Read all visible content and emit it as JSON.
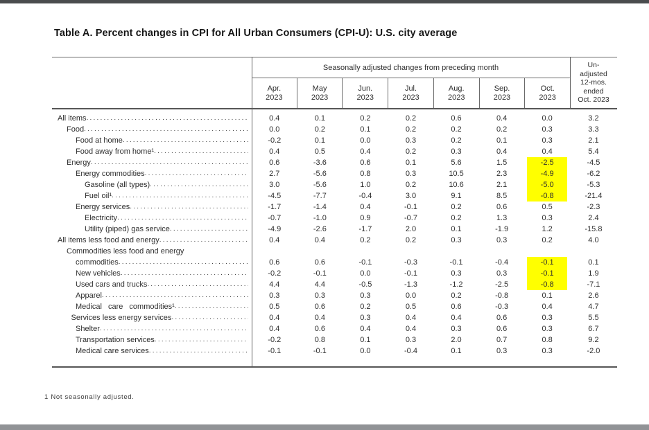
{
  "page": {
    "title": "Table A. Percent changes in CPI for All Urban Consumers (CPI-U): U.S. city average",
    "footnote": "1 Not seasonally adjusted."
  },
  "table": {
    "group_header": "Seasonally adjusted changes from preceding month",
    "month_headers": [
      "Apr.\n2023",
      "May\n2023",
      "Jun.\n2023",
      "Jul.\n2023",
      "Aug.\n2023",
      "Sep.\n2023",
      "Oct.\n2023"
    ],
    "unadjusted_header": "Un-\nadjusted\n12-mos.\nended\nOct. 2023",
    "highlight_color": "#FFFF00",
    "rows": [
      {
        "label": "All items",
        "indent": 0,
        "values": [
          "0.4",
          "0.1",
          "0.2",
          "0.2",
          "0.6",
          "0.4",
          "0.0"
        ],
        "unadjusted": "3.2",
        "highlight_oct": false
      },
      {
        "label": "Food",
        "indent": 1,
        "values": [
          "0.0",
          "0.2",
          "0.1",
          "0.2",
          "0.2",
          "0.2",
          "0.3"
        ],
        "unadjusted": "3.3",
        "highlight_oct": false
      },
      {
        "label": "Food at home",
        "indent": 2,
        "values": [
          "-0.2",
          "0.1",
          "0.0",
          "0.3",
          "0.2",
          "0.1",
          "0.3"
        ],
        "unadjusted": "2.1",
        "highlight_oct": false
      },
      {
        "label": "Food away from home¹",
        "indent": 2,
        "values": [
          "0.4",
          "0.5",
          "0.4",
          "0.2",
          "0.3",
          "0.4",
          "0.4"
        ],
        "unadjusted": "5.4",
        "highlight_oct": false
      },
      {
        "label": "Energy",
        "indent": 1,
        "values": [
          "0.6",
          "-3.6",
          "0.6",
          "0.1",
          "5.6",
          "1.5",
          "-2.5"
        ],
        "unadjusted": "-4.5",
        "highlight_oct": true
      },
      {
        "label": "Energy commodities",
        "indent": 2,
        "values": [
          "2.7",
          "-5.6",
          "0.8",
          "0.3",
          "10.5",
          "2.3",
          "-4.9"
        ],
        "unadjusted": "-6.2",
        "highlight_oct": true
      },
      {
        "label": "Gasoline (all types)",
        "indent": 3,
        "values": [
          "3.0",
          "-5.6",
          "1.0",
          "0.2",
          "10.6",
          "2.1",
          "-5.0"
        ],
        "unadjusted": "-5.3",
        "highlight_oct": true
      },
      {
        "label": "Fuel oil¹",
        "indent": 3,
        "values": [
          "-4.5",
          "-7.7",
          "-0.4",
          "3.0",
          "9.1",
          "8.5",
          "-0.8"
        ],
        "unadjusted": "-21.4",
        "highlight_oct": true
      },
      {
        "label": "Energy services",
        "indent": 2,
        "values": [
          "-1.7",
          "-1.4",
          "0.4",
          "-0.1",
          "0.2",
          "0.6",
          "0.5"
        ],
        "unadjusted": "-2.3",
        "highlight_oct": false
      },
      {
        "label": "Electricity",
        "indent": 3,
        "values": [
          "-0.7",
          "-1.0",
          "0.9",
          "-0.7",
          "0.2",
          "1.3",
          "0.3"
        ],
        "unadjusted": "2.4",
        "highlight_oct": false
      },
      {
        "label": "Utility (piped) gas service",
        "indent": 3,
        "values": [
          "-4.9",
          "-2.6",
          "-1.7",
          "2.0",
          "0.1",
          "-1.9",
          "1.2"
        ],
        "unadjusted": "-15.8",
        "highlight_oct": false
      },
      {
        "label": "All items less food and energy",
        "indent": 0,
        "values": [
          "0.4",
          "0.4",
          "0.2",
          "0.2",
          "0.3",
          "0.3",
          "0.2"
        ],
        "unadjusted": "4.0",
        "highlight_oct": false
      },
      {
        "label": "Commodities less food and energy",
        "label2": "commodities",
        "indent": 1,
        "values": [
          "0.6",
          "0.6",
          "-0.1",
          "-0.3",
          "-0.1",
          "-0.4",
          "-0.1"
        ],
        "unadjusted": "0.1",
        "highlight_oct": true
      },
      {
        "label": "New vehicles",
        "indent": 2,
        "values": [
          "-0.2",
          "-0.1",
          "0.0",
          "-0.1",
          "0.3",
          "0.3",
          "-0.1"
        ],
        "unadjusted": "1.9",
        "highlight_oct": true
      },
      {
        "label": "Used cars and trucks",
        "indent": 2,
        "values": [
          "4.4",
          "4.4",
          "-0.5",
          "-1.3",
          "-1.2",
          "-2.5",
          "-0.8"
        ],
        "unadjusted": "-7.1",
        "highlight_oct": true
      },
      {
        "label": "Apparel",
        "indent": 2,
        "values": [
          "0.3",
          "0.3",
          "0.3",
          "0.0",
          "0.2",
          "-0.8",
          "0.1"
        ],
        "unadjusted": "2.6",
        "highlight_oct": false
      },
      {
        "label": "Medical care commodities¹",
        "indent": 2,
        "wide": true,
        "values": [
          "0.5",
          "0.6",
          "0.2",
          "0.5",
          "0.6",
          "-0.3",
          "0.4"
        ],
        "unadjusted": "4.7",
        "highlight_oct": false
      },
      {
        "label": "Services less energy services",
        "indent": 1.5,
        "values": [
          "0.4",
          "0.4",
          "0.3",
          "0.4",
          "0.4",
          "0.6",
          "0.3"
        ],
        "unadjusted": "5.5",
        "highlight_oct": false
      },
      {
        "label": "Shelter",
        "indent": 2,
        "values": [
          "0.4",
          "0.6",
          "0.4",
          "0.4",
          "0.3",
          "0.6",
          "0.3"
        ],
        "unadjusted": "6.7",
        "highlight_oct": false
      },
      {
        "label": "Transportation services",
        "indent": 2,
        "values": [
          "-0.2",
          "0.8",
          "0.1",
          "0.3",
          "2.0",
          "0.7",
          "0.8"
        ],
        "unadjusted": "9.2",
        "highlight_oct": false
      },
      {
        "label": "Medical care services",
        "indent": 2,
        "values": [
          "-0.1",
          "-0.1",
          "0.0",
          "-0.4",
          "0.1",
          "0.3",
          "0.3"
        ],
        "unadjusted": "-2.0",
        "highlight_oct": false
      }
    ]
  }
}
